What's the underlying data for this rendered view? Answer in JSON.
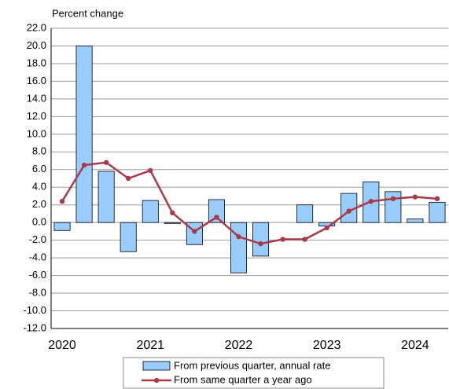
{
  "chart_data": {
    "type": "bar_line",
    "y_axis_label": "Percent change",
    "categories": [
      "2020",
      null,
      null,
      null,
      "2021",
      null,
      null,
      null,
      "2022",
      null,
      null,
      null,
      "2023",
      null,
      null,
      null,
      "2024",
      null
    ],
    "series": [
      {
        "name": "From previous quarter, annual rate",
        "type": "bar",
        "color": "#99ccff",
        "values": [
          -0.9,
          20.0,
          5.8,
          -3.3,
          2.5,
          -0.1,
          -2.5,
          2.6,
          -5.7,
          -3.8,
          0.0,
          2.0,
          -0.4,
          3.3,
          4.6,
          3.5,
          0.4,
          2.3
        ]
      },
      {
        "name": "From same quarter a year ago",
        "type": "line",
        "color": "#a83a4a",
        "values": [
          2.4,
          6.5,
          6.8,
          5.0,
          5.9,
          1.1,
          -1.0,
          0.6,
          -1.6,
          -2.4,
          -1.9,
          -1.9,
          -0.6,
          1.3,
          2.4,
          2.7,
          2.9,
          2.7
        ]
      }
    ],
    "ylim": [
      -12,
      22
    ],
    "yticks": [
      {
        "value": -12,
        "label": "-12.0"
      },
      {
        "value": -10,
        "label": "-10.0"
      },
      {
        "value": -8,
        "label": "-8.0"
      },
      {
        "value": -6,
        "label": "-6.0"
      },
      {
        "value": -4,
        "label": "-4.0"
      },
      {
        "value": -2,
        "label": "-2.0"
      },
      {
        "value": 0,
        "label": "0.0"
      },
      {
        "value": 2,
        "label": "2.0"
      },
      {
        "value": 4,
        "label": "4.0"
      },
      {
        "value": 6,
        "label": "6.0"
      },
      {
        "value": 8,
        "label": "8.0"
      },
      {
        "value": 10,
        "label": "10.0"
      },
      {
        "value": 12,
        "label": "12.0"
      },
      {
        "value": 14,
        "label": "14.0"
      },
      {
        "value": 16,
        "label": "16.0"
      },
      {
        "value": 18,
        "label": "18.0"
      },
      {
        "value": 20,
        "label": "20.0"
      },
      {
        "value": 22,
        "label": "22.0"
      }
    ],
    "grid": true
  }
}
